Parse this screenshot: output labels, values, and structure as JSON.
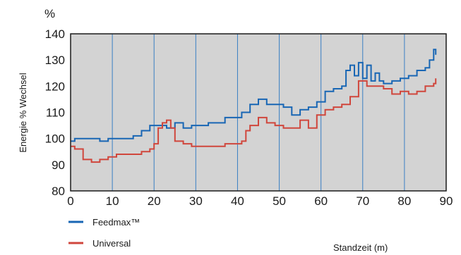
{
  "chart_data": {
    "type": "line",
    "unit_label": "%",
    "ylabel": "Energie % Wechsel",
    "xlabel": "Standzeit (m)",
    "xlim": [
      0,
      90
    ],
    "ylim": [
      80,
      140
    ],
    "xticks": [
      0,
      10,
      20,
      30,
      40,
      50,
      60,
      70,
      80,
      90
    ],
    "yticks": [
      80,
      90,
      100,
      110,
      120,
      130,
      140
    ],
    "grid": {
      "vertical": true,
      "horizontal": false
    },
    "legend_position": "bottom-left",
    "colors": {
      "plot_background": "#d3d3d3",
      "grid": "#3a7fc4"
    },
    "series": [
      {
        "name": "Feedmax™",
        "color": "#1866b4",
        "x": [
          0,
          1,
          3,
          5,
          7,
          9,
          11,
          13,
          15,
          17,
          19,
          21,
          23,
          25,
          27,
          29,
          31,
          33,
          35,
          37,
          39,
          41,
          43,
          45,
          47,
          49,
          51,
          53,
          55,
          57,
          59,
          61,
          63,
          65,
          66,
          67,
          68,
          69,
          70,
          71,
          72,
          73,
          74,
          75,
          77,
          79,
          81,
          83,
          85,
          86,
          87,
          87.5
        ],
        "y": [
          99,
          100,
          100,
          100,
          99,
          100,
          100,
          100,
          101,
          103,
          105,
          105,
          104,
          106,
          104,
          105,
          105,
          106,
          106,
          108,
          108,
          110,
          113,
          115,
          113,
          113,
          112,
          109,
          111,
          112,
          114,
          118,
          119,
          120,
          126,
          128,
          124,
          129,
          123,
          128,
          122,
          125,
          122,
          121,
          122,
          123,
          124,
          126,
          127,
          130,
          134,
          132
        ]
      },
      {
        "name": "Universal",
        "color": "#d0463c",
        "x": [
          0,
          1,
          3,
          5,
          7,
          9,
          11,
          13,
          15,
          17,
          19,
          20,
          21,
          22,
          23,
          24,
          25,
          27,
          29,
          31,
          33,
          35,
          37,
          39,
          41,
          42,
          43,
          45,
          47,
          49,
          51,
          53,
          55,
          57,
          59,
          61,
          63,
          65,
          67,
          69,
          70,
          71,
          73,
          75,
          77,
          79,
          81,
          83,
          85,
          87,
          87.5
        ],
        "y": [
          97,
          96,
          92,
          91,
          92,
          93,
          94,
          94,
          94,
          95,
          96,
          98,
          104,
          106,
          107,
          104,
          99,
          98,
          97,
          97,
          97,
          97,
          98,
          98,
          99,
          103,
          105,
          108,
          106,
          105,
          104,
          104,
          107,
          104,
          109,
          111,
          112,
          113,
          116,
          122,
          122,
          120,
          120,
          119,
          117,
          118,
          117,
          118,
          120,
          121,
          123
        ]
      }
    ]
  }
}
